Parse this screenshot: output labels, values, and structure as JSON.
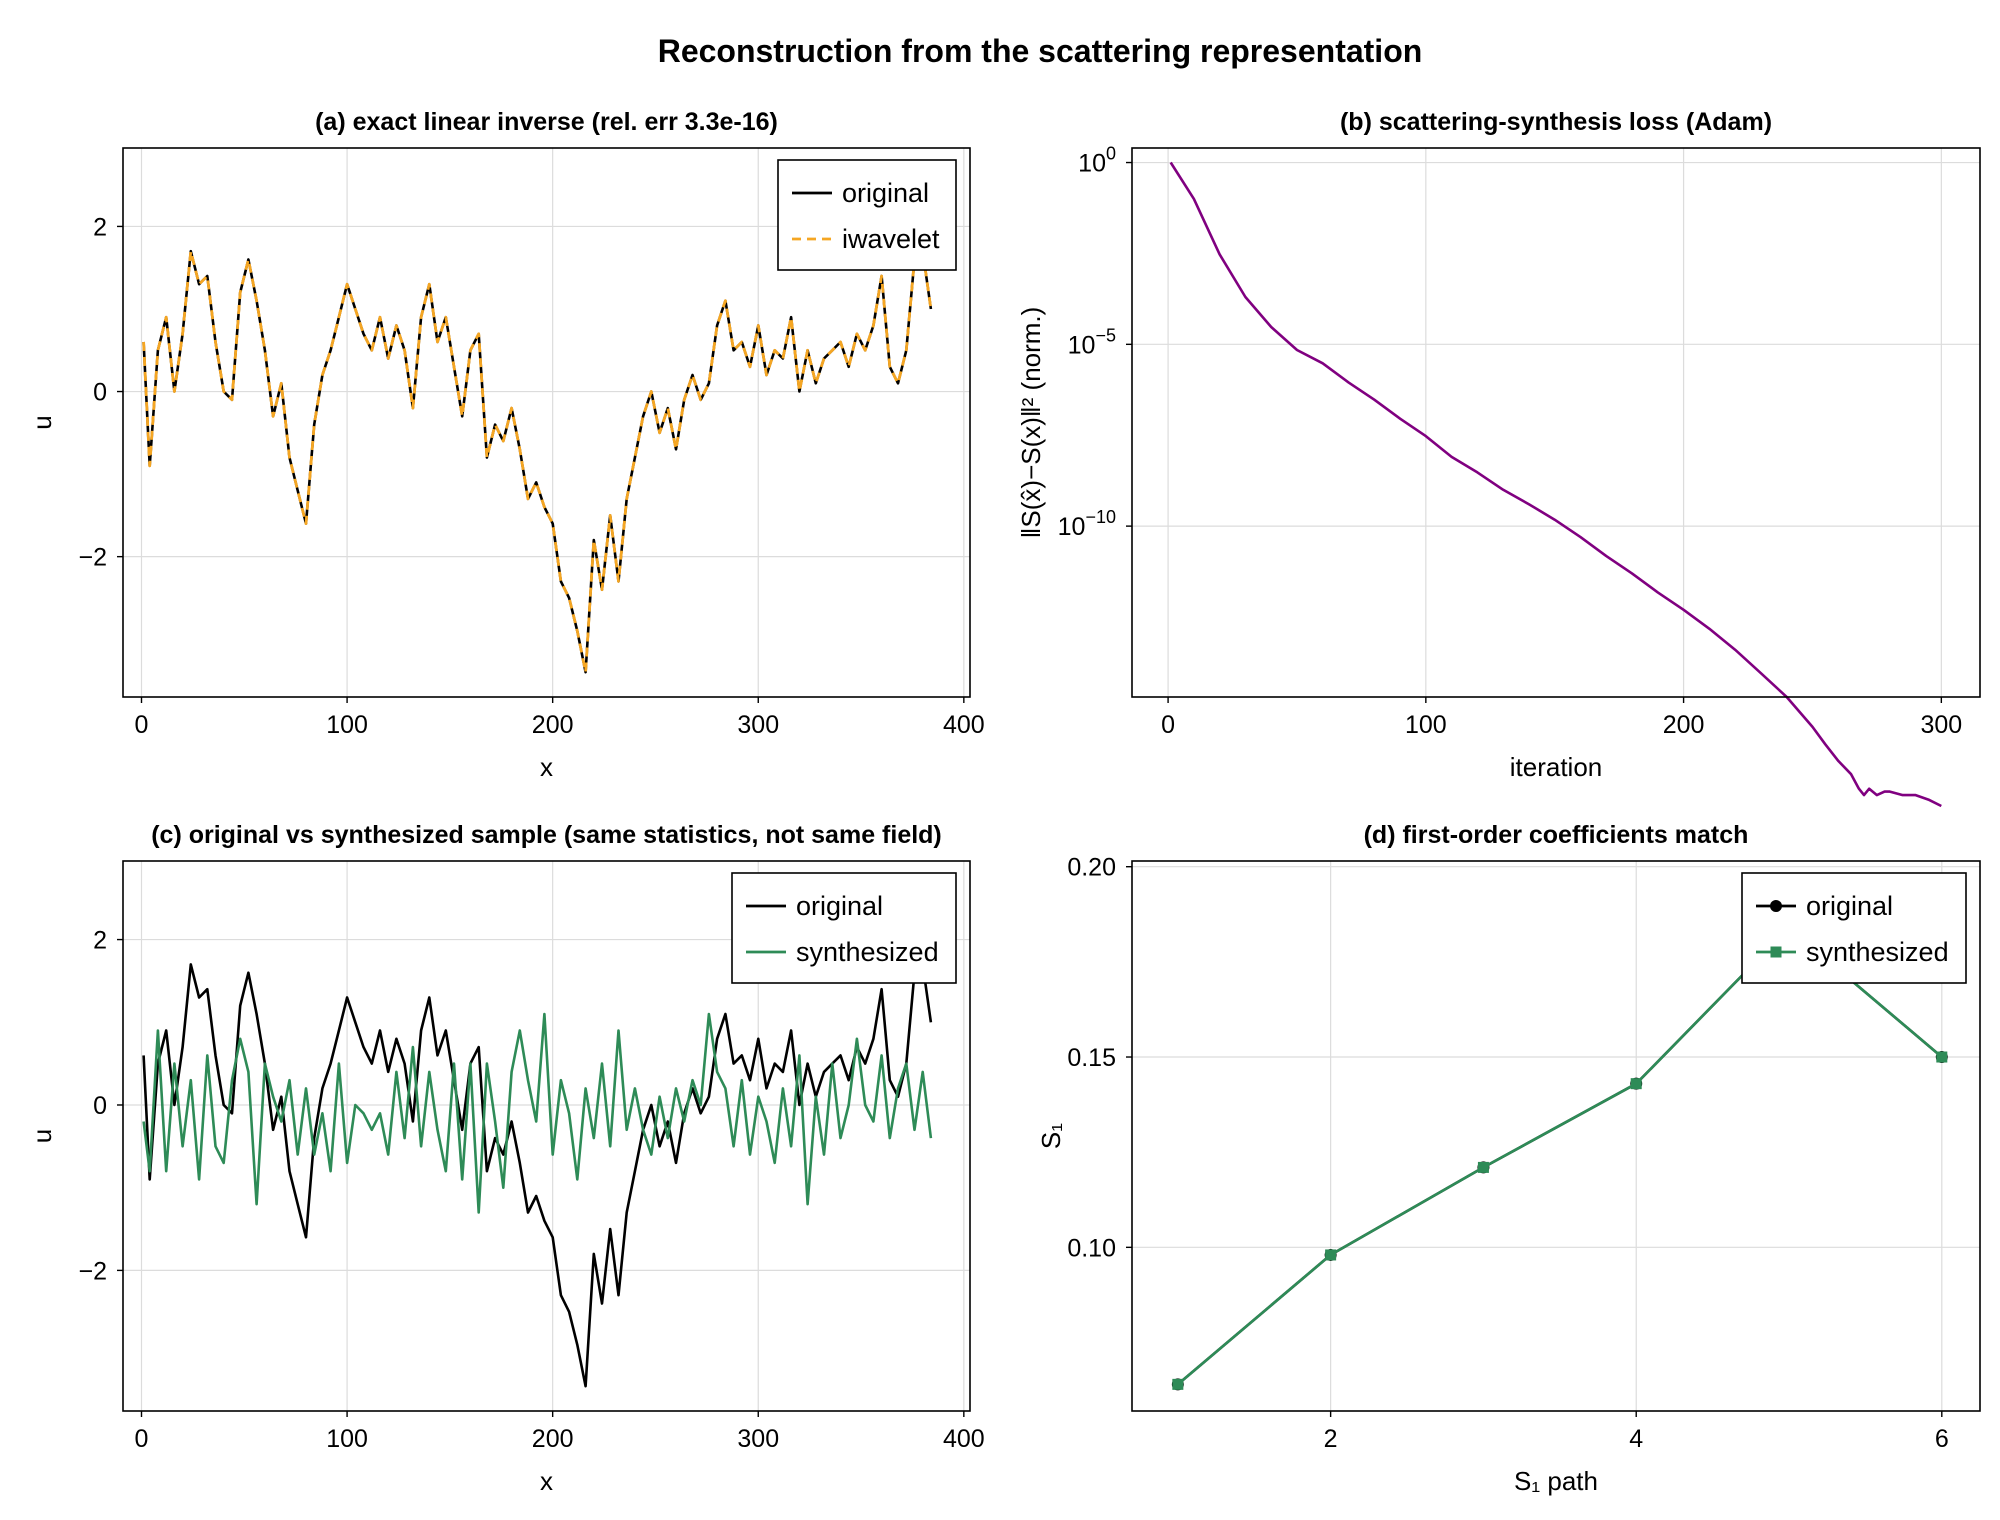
{
  "figure": {
    "title": "Reconstruction from the scattering representation"
  },
  "chart_data": [
    {
      "id": "a",
      "type": "line",
      "title": "(a) exact linear inverse  (rel. err 3.3e-16)",
      "xlabel": "x",
      "ylabel": "u",
      "xlim": [
        -9,
        403
      ],
      "ylim": [
        -3.7,
        2.95
      ],
      "xticks": [
        0,
        100,
        200,
        300,
        400
      ],
      "yticks": [
        2,
        0,
        -2
      ],
      "grid": true,
      "legend_position": "top-right",
      "series": [
        {
          "name": "original",
          "color": "#000000",
          "dash": "solid",
          "x": [
            1,
            4,
            8,
            12,
            16,
            20,
            24,
            28,
            32,
            36,
            40,
            44,
            48,
            52,
            56,
            60,
            64,
            68,
            72,
            76,
            80,
            84,
            88,
            92,
            96,
            100,
            104,
            108,
            112,
            116,
            120,
            124,
            128,
            132,
            136,
            140,
            144,
            148,
            152,
            156,
            160,
            164,
            168,
            172,
            176,
            180,
            184,
            188,
            192,
            196,
            200,
            204,
            208,
            212,
            216,
            220,
            224,
            228,
            232,
            236,
            240,
            244,
            248,
            252,
            256,
            260,
            264,
            268,
            272,
            276,
            280,
            284,
            288,
            292,
            296,
            300,
            304,
            308,
            312,
            316,
            320,
            324,
            328,
            332,
            336,
            340,
            344,
            348,
            352,
            356,
            360,
            364,
            368,
            372,
            376,
            380,
            384
          ],
          "y": [
            0.6,
            -0.9,
            0.5,
            0.9,
            0,
            0.7,
            1.7,
            1.3,
            1.4,
            0.6,
            0,
            -0.1,
            1.2,
            1.6,
            1.1,
            0.5,
            -0.3,
            0.1,
            -0.8,
            -1.2,
            -1.6,
            -0.4,
            0.2,
            0.5,
            0.9,
            1.3,
            1,
            0.7,
            0.5,
            0.9,
            0.4,
            0.8,
            0.5,
            -0.2,
            0.9,
            1.3,
            0.6,
            0.9,
            0.3,
            -0.3,
            0.5,
            0.7,
            -0.8,
            -0.4,
            -0.6,
            -0.2,
            -0.7,
            -1.3,
            -1.1,
            -1.4,
            -1.6,
            -2.3,
            -2.5,
            -2.9,
            -3.4,
            -1.8,
            -2.4,
            -1.5,
            -2.3,
            -1.3,
            -0.8,
            -0.3,
            0,
            -0.5,
            -0.2,
            -0.7,
            -0.1,
            0.2,
            -0.1,
            0.1,
            0.8,
            1.1,
            0.5,
            0.6,
            0.3,
            0.8,
            0.2,
            0.5,
            0.4,
            0.9,
            0,
            0.5,
            0.1,
            0.4,
            0.5,
            0.6,
            0.3,
            0.7,
            0.5,
            0.8,
            1.4,
            0.3,
            0.1,
            0.5,
            1.6,
            1.7,
            1
          ]
        },
        {
          "name": "iwavelet",
          "color": "#f5a623",
          "dash": "dashed",
          "x": [
            1,
            4,
            8,
            12,
            16,
            20,
            24,
            28,
            32,
            36,
            40,
            44,
            48,
            52,
            56,
            60,
            64,
            68,
            72,
            76,
            80,
            84,
            88,
            92,
            96,
            100,
            104,
            108,
            112,
            116,
            120,
            124,
            128,
            132,
            136,
            140,
            144,
            148,
            152,
            156,
            160,
            164,
            168,
            172,
            176,
            180,
            184,
            188,
            192,
            196,
            200,
            204,
            208,
            212,
            216,
            220,
            224,
            228,
            232,
            236,
            240,
            244,
            248,
            252,
            256,
            260,
            264,
            268,
            272,
            276,
            280,
            284,
            288,
            292,
            296,
            300,
            304,
            308,
            312,
            316,
            320,
            324,
            328,
            332,
            336,
            340,
            344,
            348,
            352,
            356,
            360,
            364,
            368,
            372,
            376,
            380,
            384
          ],
          "y": [
            0.6,
            -0.9,
            0.5,
            0.9,
            0,
            0.7,
            1.7,
            1.3,
            1.4,
            0.6,
            0,
            -0.1,
            1.2,
            1.6,
            1.1,
            0.5,
            -0.3,
            0.1,
            -0.8,
            -1.2,
            -1.6,
            -0.4,
            0.2,
            0.5,
            0.9,
            1.3,
            1,
            0.7,
            0.5,
            0.9,
            0.4,
            0.8,
            0.5,
            -0.2,
            0.9,
            1.3,
            0.6,
            0.9,
            0.3,
            -0.3,
            0.5,
            0.7,
            -0.8,
            -0.4,
            -0.6,
            -0.2,
            -0.7,
            -1.3,
            -1.1,
            -1.4,
            -1.6,
            -2.3,
            -2.5,
            -2.9,
            -3.4,
            -1.8,
            -2.4,
            -1.5,
            -2.3,
            -1.3,
            -0.8,
            -0.3,
            0,
            -0.5,
            -0.2,
            -0.7,
            -0.1,
            0.2,
            -0.1,
            0.1,
            0.8,
            1.1,
            0.5,
            0.6,
            0.3,
            0.8,
            0.2,
            0.5,
            0.4,
            0.9,
            0,
            0.5,
            0.1,
            0.4,
            0.5,
            0.6,
            0.3,
            0.7,
            0.5,
            0.8,
            1.4,
            0.3,
            0.1,
            0.5,
            1.6,
            1.7,
            1
          ]
        }
      ]
    },
    {
      "id": "b",
      "type": "line",
      "title": "(b) scattering-synthesis loss (Adam)",
      "xlabel": "iteration",
      "ylabel": "‖S(x̂)−S(x)‖² (norm.)",
      "xlim": [
        -14,
        315
      ],
      "log_scale_y": true,
      "ylim_log10": [
        -14.7,
        0.4
      ],
      "xticks": [
        0,
        100,
        200,
        300
      ],
      "ytick_exponents": [
        0,
        -5,
        -10
      ],
      "grid": true,
      "series": [
        {
          "name": "",
          "color": "#800080",
          "x": [
            1,
            10,
            20,
            30,
            40,
            50,
            60,
            70,
            80,
            90,
            100,
            110,
            120,
            130,
            140,
            150,
            160,
            170,
            180,
            190,
            200,
            210,
            220,
            230,
            240,
            250,
            255,
            260,
            265,
            268,
            270,
            272,
            275,
            278,
            280,
            285,
            290,
            295,
            300
          ],
          "y": [
            1,
            0.1,
            0.003,
            0.0002,
            3e-05,
            7e-06,
            3e-06,
            9e-07,
            3e-07,
            9e-08,
            3e-08,
            8e-09,
            3e-09,
            1e-09,
            4e-10,
            1.5e-10,
            5e-11,
            1.5e-11,
            5e-12,
            1.5e-12,
            5e-13,
            1.5e-13,
            4e-14,
            9e-15,
            2e-15,
            3e-16,
            1e-16,
            3.5e-17,
            1.5e-17,
            6e-18,
            4e-18,
            6e-18,
            4e-18,
            5e-18,
            5e-18,
            4e-18,
            4e-18,
            3e-18,
            2e-18
          ]
        }
      ]
    },
    {
      "id": "c",
      "type": "line",
      "title": "(c) original vs synthesized sample (same statistics, not same field)",
      "xlabel": "x",
      "ylabel": "u",
      "xlim": [
        -9,
        403
      ],
      "ylim": [
        -3.7,
        2.95
      ],
      "xticks": [
        0,
        100,
        200,
        300,
        400
      ],
      "yticks": [
        2,
        0,
        -2
      ],
      "grid": true,
      "legend_position": "top-right",
      "series": [
        {
          "name": "original",
          "color": "#000000",
          "x": [
            1,
            4,
            8,
            12,
            16,
            20,
            24,
            28,
            32,
            36,
            40,
            44,
            48,
            52,
            56,
            60,
            64,
            68,
            72,
            76,
            80,
            84,
            88,
            92,
            96,
            100,
            104,
            108,
            112,
            116,
            120,
            124,
            128,
            132,
            136,
            140,
            144,
            148,
            152,
            156,
            160,
            164,
            168,
            172,
            176,
            180,
            184,
            188,
            192,
            196,
            200,
            204,
            208,
            212,
            216,
            220,
            224,
            228,
            232,
            236,
            240,
            244,
            248,
            252,
            256,
            260,
            264,
            268,
            272,
            276,
            280,
            284,
            288,
            292,
            296,
            300,
            304,
            308,
            312,
            316,
            320,
            324,
            328,
            332,
            336,
            340,
            344,
            348,
            352,
            356,
            360,
            364,
            368,
            372,
            376,
            380,
            384
          ],
          "y": [
            0.6,
            -0.9,
            0.5,
            0.9,
            0,
            0.7,
            1.7,
            1.3,
            1.4,
            0.6,
            0,
            -0.1,
            1.2,
            1.6,
            1.1,
            0.5,
            -0.3,
            0.1,
            -0.8,
            -1.2,
            -1.6,
            -0.4,
            0.2,
            0.5,
            0.9,
            1.3,
            1,
            0.7,
            0.5,
            0.9,
            0.4,
            0.8,
            0.5,
            -0.2,
            0.9,
            1.3,
            0.6,
            0.9,
            0.3,
            -0.3,
            0.5,
            0.7,
            -0.8,
            -0.4,
            -0.6,
            -0.2,
            -0.7,
            -1.3,
            -1.1,
            -1.4,
            -1.6,
            -2.3,
            -2.5,
            -2.9,
            -3.4,
            -1.8,
            -2.4,
            -1.5,
            -2.3,
            -1.3,
            -0.8,
            -0.3,
            0,
            -0.5,
            -0.2,
            -0.7,
            -0.1,
            0.2,
            -0.1,
            0.1,
            0.8,
            1.1,
            0.5,
            0.6,
            0.3,
            0.8,
            0.2,
            0.5,
            0.4,
            0.9,
            0,
            0.5,
            0.1,
            0.4,
            0.5,
            0.6,
            0.3,
            0.7,
            0.5,
            0.8,
            1.4,
            0.3,
            0.1,
            0.5,
            1.6,
            1.7,
            1
          ]
        },
        {
          "name": "synthesized",
          "color": "#2e8b57",
          "x": [
            1,
            4,
            8,
            12,
            16,
            20,
            24,
            28,
            32,
            36,
            40,
            44,
            48,
            52,
            56,
            60,
            64,
            68,
            72,
            76,
            80,
            84,
            88,
            92,
            96,
            100,
            104,
            108,
            112,
            116,
            120,
            124,
            128,
            132,
            136,
            140,
            144,
            148,
            152,
            156,
            160,
            164,
            168,
            172,
            176,
            180,
            184,
            188,
            192,
            196,
            200,
            204,
            208,
            212,
            216,
            220,
            224,
            228,
            232,
            236,
            240,
            244,
            248,
            252,
            256,
            260,
            264,
            268,
            272,
            276,
            280,
            284,
            288,
            292,
            296,
            300,
            304,
            308,
            312,
            316,
            320,
            324,
            328,
            332,
            336,
            340,
            344,
            348,
            352,
            356,
            360,
            364,
            368,
            372,
            376,
            380,
            384
          ],
          "y": [
            -0.2,
            -0.8,
            0.9,
            -0.8,
            0.5,
            -0.5,
            0.3,
            -0.9,
            0.6,
            -0.5,
            -0.7,
            0.3,
            0.8,
            0.4,
            -1.2,
            0.5,
            0.1,
            -0.2,
            0.3,
            -0.6,
            0.2,
            -0.6,
            -0.1,
            -0.8,
            0.5,
            -0.7,
            0,
            -0.1,
            -0.3,
            -0.1,
            -0.6,
            0.4,
            -0.4,
            0.7,
            -0.5,
            0.4,
            -0.3,
            -0.8,
            0.5,
            -0.9,
            0.5,
            -1.3,
            0.5,
            -0.2,
            -1,
            0.4,
            0.9,
            0.3,
            -0.2,
            1.1,
            -0.6,
            0.3,
            -0.1,
            -0.9,
            0.2,
            -0.4,
            0.5,
            -0.5,
            0.9,
            -0.3,
            0.2,
            -0.3,
            -0.6,
            0.1,
            -0.4,
            0.2,
            -0.2,
            0.3,
            0,
            1.1,
            0.4,
            0.2,
            -0.5,
            0.3,
            -0.6,
            0.1,
            -0.2,
            -0.7,
            0.2,
            -0.5,
            0.6,
            -1.2,
            0.1,
            -0.6,
            0.5,
            -0.4,
            0,
            0.8,
            0,
            -0.2,
            0.6,
            -0.4,
            0.2,
            0.5,
            -0.3,
            0.4,
            -0.4
          ]
        }
      ]
    },
    {
      "id": "d",
      "type": "line",
      "title": "(d) first-order coefficients match",
      "xlabel": "S₁ path",
      "ylabel": "S₁",
      "xlim": [
        0.7,
        6.25
      ],
      "ylim": [
        0.057,
        0.2015
      ],
      "xticks": [
        2,
        4,
        6
      ],
      "yticks": [
        0.2,
        0.15,
        0.1
      ],
      "ytick_labels": [
        "0.20",
        "0.15",
        "0.10"
      ],
      "grid": true,
      "legend_position": "top-right",
      "series": [
        {
          "name": "original",
          "color": "#000000",
          "marker": "circle",
          "x": [
            1,
            2,
            3,
            4,
            5,
            6
          ],
          "y": [
            0.064,
            0.098,
            0.121,
            0.143,
            0.184,
            0.15
          ]
        },
        {
          "name": "synthesized",
          "color": "#2e8b57",
          "marker": "square",
          "x": [
            1,
            2,
            3,
            4,
            5,
            6
          ],
          "y": [
            0.064,
            0.098,
            0.121,
            0.143,
            0.184,
            0.15
          ]
        }
      ]
    }
  ]
}
